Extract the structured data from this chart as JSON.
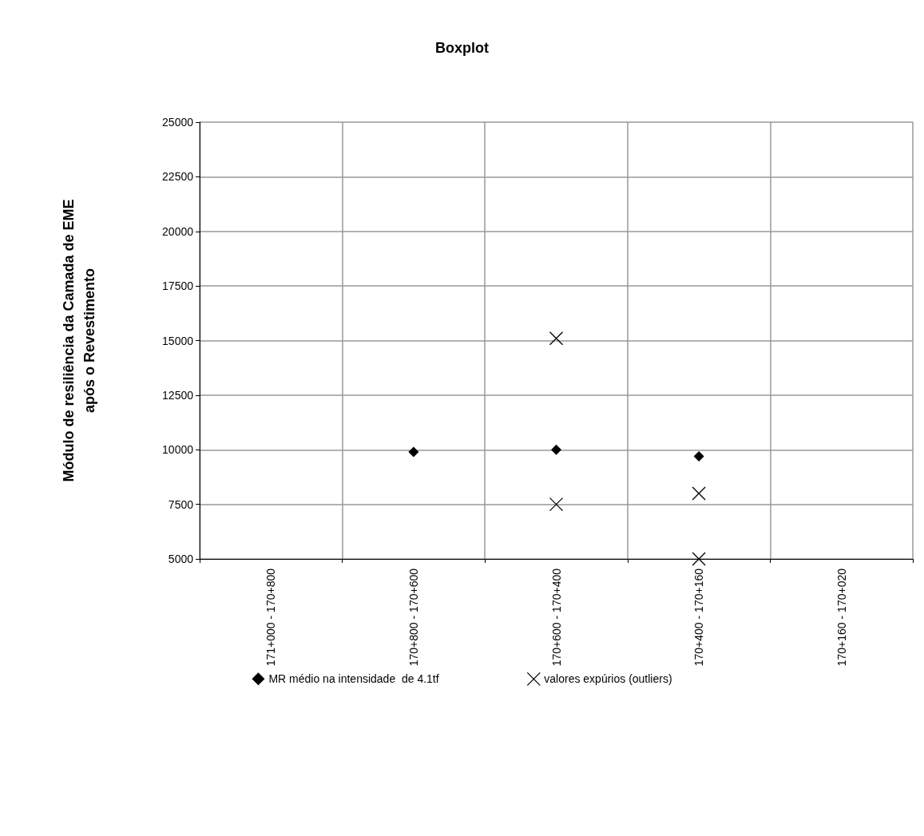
{
  "chart_data": {
    "type": "scatter",
    "title": "Boxplot",
    "ylabel": "Módulo de resiliência da Camada de EME\napós o Revestimento",
    "categories": [
      "171+000 - 170+800",
      "170+800 - 170+600",
      "170+600 - 170+400",
      "170+400 - 170+160",
      "170+160 - 170+020"
    ],
    "ylim": [
      5000,
      25000
    ],
    "yticks": [
      5000,
      7500,
      10000,
      12500,
      15000,
      17500,
      20000,
      22500,
      25000
    ],
    "grid": true,
    "legend": "bottom",
    "series": [
      {
        "name": "MR médio na intensidade  de 4.1tf",
        "color": "#000000",
        "marker": "diamond",
        "values": [
          null,
          9900,
          10000,
          9700,
          null
        ]
      },
      {
        "name": "valores expúrios (outliers)",
        "color": "#000000",
        "marker": "cross",
        "x": [
          "170+600 - 170+400",
          "170+600 - 170+400",
          "170+400 - 170+160",
          "170+400 - 170+160"
        ],
        "values": [
          15100,
          7500,
          8000,
          5000
        ]
      }
    ]
  }
}
